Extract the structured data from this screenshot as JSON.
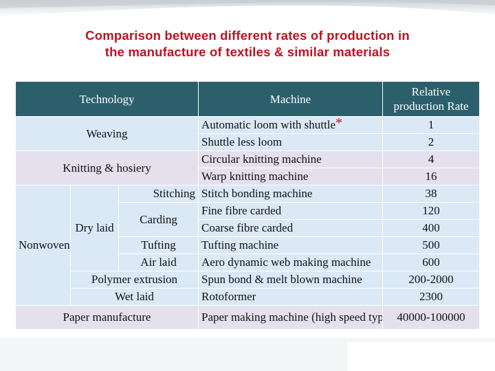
{
  "title": {
    "line1": "Comparison between different rates of production in",
    "line2": "the manufacture of textiles & similar materials"
  },
  "table": {
    "headers": {
      "technology": "Technology",
      "machine": "Machine",
      "rate_line1": "Relative",
      "rate_line2": "production Rate"
    },
    "groups": {
      "weaving": "Weaving",
      "knitting": "Knitting & hosiery",
      "nonwoven": "Nonwoven",
      "dry_laid": "Dry laid",
      "stitching": "Stitching",
      "carding": "Carding",
      "tufting": "Tufting",
      "air_laid": "Air laid",
      "polymer_extrusion": "Polymer extrusion",
      "wet_laid": "Wet laid",
      "paper": "Paper manufacture"
    },
    "rows": [
      {
        "machine": "Automatic loom with shuttle",
        "rate": "1"
      },
      {
        "machine": "Shuttle less loom",
        "rate": "2"
      },
      {
        "machine": "Circular knitting machine",
        "rate": "4"
      },
      {
        "machine": "Warp knitting machine",
        "rate": "16"
      },
      {
        "machine": "Stitch bonding machine",
        "rate": "38"
      },
      {
        "machine": "Fine fibre carded",
        "rate": "120"
      },
      {
        "machine": "Coarse fibre carded",
        "rate": "400"
      },
      {
        "machine": "Tufting machine",
        "rate": "500"
      },
      {
        "machine": "Aero dynamic web making machine",
        "rate": "600"
      },
      {
        "machine": "Spun bond & melt blown machine",
        "rate": "200-2000"
      },
      {
        "machine": "Rotoformer",
        "rate": "2300"
      },
      {
        "machine": "Paper making machine (high speed type)",
        "rate": "40000-100000"
      }
    ],
    "footnote_mark": "*"
  }
}
